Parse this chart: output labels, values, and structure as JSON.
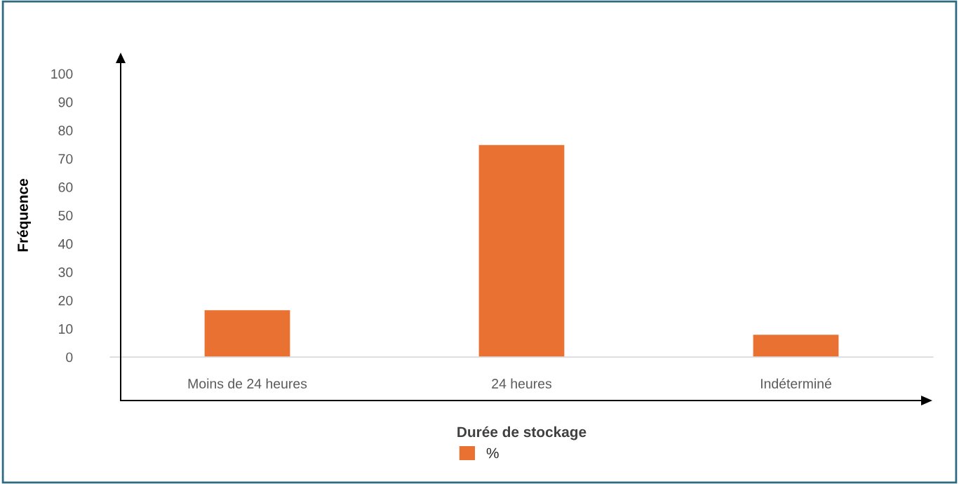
{
  "chart_data": {
    "type": "bar",
    "xlabel": "Durée de stockage",
    "ylabel": "Fréquence",
    "categories": [
      "Moins de 24 heures",
      "24 heures",
      "Indéterminé"
    ],
    "series": [
      {
        "name": "%",
        "color": "#e97132",
        "values": [
          16.7,
          75,
          8
        ]
      }
    ],
    "ylim": [
      0,
      100
    ],
    "yticks": [
      0,
      10,
      20,
      30,
      40,
      50,
      60,
      70,
      80,
      90,
      100
    ],
    "grid": false,
    "legend": "bottom"
  }
}
